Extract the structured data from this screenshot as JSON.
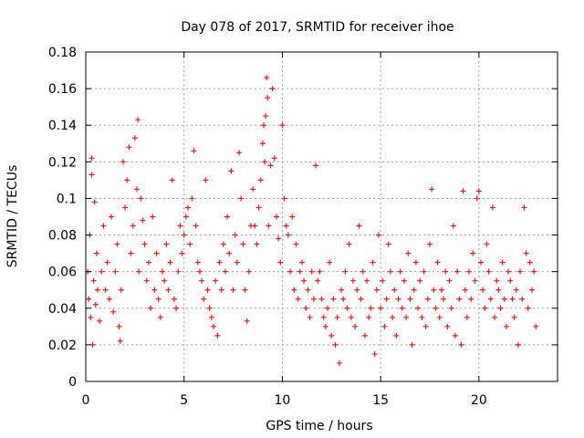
{
  "chart_data": {
    "type": "scatter",
    "title": "Day 078 of 2017, SRMTID for receiver ihoe",
    "xlabel": "GPS time / hours",
    "ylabel": "SRMTID / TECUs",
    "xlim": [
      0,
      24
    ],
    "ylim": [
      0,
      0.18
    ],
    "xticks": [
      0,
      5,
      10,
      15,
      20
    ],
    "xtick_labels": [
      "0",
      "5",
      "10",
      "15",
      "20"
    ],
    "yticks": [
      0,
      0.02,
      0.04,
      0.06,
      0.08,
      0.1,
      0.12,
      0.14,
      0.16,
      0.18
    ],
    "ytick_labels": [
      "0",
      "0.02",
      "0.04",
      "0.06",
      "0.08",
      "0.1",
      "0.12",
      "0.14",
      "0.16",
      "0.18"
    ],
    "grid": true,
    "marker": "+",
    "color": "#e41a1c",
    "series": [
      {
        "name": "SRMTID",
        "points": [
          [
            0.1,
            0.06
          ],
          [
            0.15,
            0.045
          ],
          [
            0.2,
            0.08
          ],
          [
            0.25,
            0.035
          ],
          [
            0.3,
            0.122
          ],
          [
            0.3,
            0.113
          ],
          [
            0.35,
            0.02
          ],
          [
            0.4,
            0.055
          ],
          [
            0.45,
            0.098
          ],
          [
            0.5,
            0.042
          ],
          [
            0.55,
            0.07
          ],
          [
            0.6,
            0.05
          ],
          [
            0.7,
            0.033
          ],
          [
            0.8,
            0.06
          ],
          [
            0.9,
            0.085
          ],
          [
            1.0,
            0.05
          ],
          [
            1.1,
            0.065
          ],
          [
            1.2,
            0.045
          ],
          [
            1.3,
            0.09
          ],
          [
            1.4,
            0.038
          ],
          [
            1.5,
            0.06
          ],
          [
            1.6,
            0.075
          ],
          [
            1.7,
            0.03
          ],
          [
            1.75,
            0.022
          ],
          [
            1.8,
            0.05
          ],
          [
            1.9,
            0.12
          ],
          [
            2.0,
            0.095
          ],
          [
            2.1,
            0.11
          ],
          [
            2.2,
            0.128
          ],
          [
            2.3,
            0.07
          ],
          [
            2.4,
            0.085
          ],
          [
            2.5,
            0.133
          ],
          [
            2.6,
            0.105
          ],
          [
            2.65,
            0.143
          ],
          [
            2.7,
            0.06
          ],
          [
            2.8,
            0.1
          ],
          [
            2.9,
            0.088
          ],
          [
            3.0,
            0.075
          ],
          [
            3.1,
            0.055
          ],
          [
            3.2,
            0.065
          ],
          [
            3.3,
            0.04
          ],
          [
            3.4,
            0.09
          ],
          [
            3.5,
            0.05
          ],
          [
            3.6,
            0.07
          ],
          [
            3.7,
            0.045
          ],
          [
            3.8,
            0.035
          ],
          [
            3.9,
            0.06
          ],
          [
            4.0,
            0.055
          ],
          [
            4.1,
            0.075
          ],
          [
            4.2,
            0.05
          ],
          [
            4.3,
            0.065
          ],
          [
            4.4,
            0.11
          ],
          [
            4.5,
            0.045
          ],
          [
            4.6,
            0.04
          ],
          [
            4.7,
            0.06
          ],
          [
            4.8,
            0.085
          ],
          [
            4.9,
            0.07
          ],
          [
            5.0,
            0.08
          ],
          [
            5.1,
            0.09
          ],
          [
            5.2,
            0.095
          ],
          [
            5.3,
            0.075
          ],
          [
            5.4,
            0.1
          ],
          [
            5.5,
            0.126
          ],
          [
            5.6,
            0.085
          ],
          [
            5.7,
            0.065
          ],
          [
            5.8,
            0.06
          ],
          [
            5.9,
            0.055
          ],
          [
            6.0,
            0.045
          ],
          [
            6.1,
            0.11
          ],
          [
            6.2,
            0.05
          ],
          [
            6.3,
            0.04
          ],
          [
            6.4,
            0.035
          ],
          [
            6.5,
            0.03
          ],
          [
            6.6,
            0.055
          ],
          [
            6.7,
            0.025
          ],
          [
            6.8,
            0.065
          ],
          [
            6.9,
            0.05
          ],
          [
            7.0,
            0.075
          ],
          [
            7.1,
            0.06
          ],
          [
            7.2,
            0.09
          ],
          [
            7.3,
            0.07
          ],
          [
            7.4,
            0.115
          ],
          [
            7.5,
            0.05
          ],
          [
            7.6,
            0.08
          ],
          [
            7.7,
            0.065
          ],
          [
            7.8,
            0.125
          ],
          [
            7.9,
            0.1
          ],
          [
            8.0,
            0.075
          ],
          [
            8.1,
            0.05
          ],
          [
            8.2,
            0.033
          ],
          [
            8.3,
            0.06
          ],
          [
            8.4,
            0.085
          ],
          [
            8.5,
            0.105
          ],
          [
            8.6,
            0.085
          ],
          [
            8.7,
            0.075
          ],
          [
            8.8,
            0.095
          ],
          [
            8.9,
            0.11
          ],
          [
            9.0,
            0.13
          ],
          [
            9.05,
            0.14
          ],
          [
            9.1,
            0.12
          ],
          [
            9.15,
            0.145
          ],
          [
            9.2,
            0.166
          ],
          [
            9.25,
            0.155
          ],
          [
            9.3,
            0.085
          ],
          [
            9.4,
            0.118
          ],
          [
            9.5,
            0.16
          ],
          [
            9.6,
            0.122
          ],
          [
            9.7,
            0.09
          ],
          [
            9.8,
            0.078
          ],
          [
            9.9,
            0.065
          ],
          [
            10.0,
            0.14
          ],
          [
            10.1,
            0.1
          ],
          [
            10.2,
            0.085
          ],
          [
            10.3,
            0.08
          ],
          [
            10.4,
            0.06
          ],
          [
            10.5,
            0.09
          ],
          [
            10.6,
            0.05
          ],
          [
            10.7,
            0.075
          ],
          [
            10.8,
            0.045
          ],
          [
            10.9,
            0.06
          ],
          [
            11.0,
            0.065
          ],
          [
            11.1,
            0.055
          ],
          [
            11.2,
            0.04
          ],
          [
            11.3,
            0.05
          ],
          [
            11.4,
            0.035
          ],
          [
            11.5,
            0.06
          ],
          [
            11.6,
            0.045
          ],
          [
            11.7,
            0.118
          ],
          [
            11.8,
            0.055
          ],
          [
            11.9,
            0.06
          ],
          [
            12.0,
            0.045
          ],
          [
            12.1,
            0.035
          ],
          [
            12.2,
            0.03
          ],
          [
            12.3,
            0.04
          ],
          [
            12.4,
            0.065
          ],
          [
            12.5,
            0.025
          ],
          [
            12.6,
            0.045
          ],
          [
            12.7,
            0.02
          ],
          [
            12.8,
            0.035
          ],
          [
            12.9,
            0.01
          ],
          [
            13.0,
            0.05
          ],
          [
            13.1,
            0.045
          ],
          [
            13.2,
            0.06
          ],
          [
            13.3,
            0.04
          ],
          [
            13.4,
            0.075
          ],
          [
            13.5,
            0.035
          ],
          [
            13.6,
            0.055
          ],
          [
            13.7,
            0.03
          ],
          [
            13.8,
            0.05
          ],
          [
            13.9,
            0.085
          ],
          [
            14.0,
            0.045
          ],
          [
            14.1,
            0.06
          ],
          [
            14.2,
            0.025
          ],
          [
            14.3,
            0.055
          ],
          [
            14.4,
            0.035
          ],
          [
            14.5,
            0.04
          ],
          [
            14.6,
            0.065
          ],
          [
            14.7,
            0.015
          ],
          [
            14.8,
            0.05
          ],
          [
            14.9,
            0.08
          ],
          [
            15.0,
            0.04
          ],
          [
            15.1,
            0.055
          ],
          [
            15.2,
            0.03
          ],
          [
            15.3,
            0.045
          ],
          [
            15.4,
            0.075
          ],
          [
            15.5,
            0.06
          ],
          [
            15.6,
            0.035
          ],
          [
            15.7,
            0.05
          ],
          [
            15.8,
            0.025
          ],
          [
            15.9,
            0.045
          ],
          [
            16.0,
            0.06
          ],
          [
            16.1,
            0.04
          ],
          [
            16.2,
            0.055
          ],
          [
            16.3,
            0.035
          ],
          [
            16.4,
            0.07
          ],
          [
            16.5,
            0.045
          ],
          [
            16.6,
            0.02
          ],
          [
            16.7,
            0.05
          ],
          [
            16.8,
            0.065
          ],
          [
            16.9,
            0.04
          ],
          [
            17.0,
            0.055
          ],
          [
            17.1,
            0.035
          ],
          [
            17.2,
            0.06
          ],
          [
            17.3,
            0.03
          ],
          [
            17.4,
            0.045
          ],
          [
            17.5,
            0.075
          ],
          [
            17.6,
            0.105
          ],
          [
            17.7,
            0.05
          ],
          [
            17.8,
            0.04
          ],
          [
            17.9,
            0.065
          ],
          [
            18.0,
            0.035
          ],
          [
            18.1,
            0.05
          ],
          [
            18.2,
            0.045
          ],
          [
            18.3,
            0.06
          ],
          [
            18.4,
            0.03
          ],
          [
            18.5,
            0.055
          ],
          [
            18.6,
            0.04
          ],
          [
            18.7,
            0.085
          ],
          [
            18.8,
            0.025
          ],
          [
            18.9,
            0.06
          ],
          [
            19.0,
            0.045
          ],
          [
            19.1,
            0.02
          ],
          [
            19.2,
            0.104
          ],
          [
            19.3,
            0.05
          ],
          [
            19.4,
            0.035
          ],
          [
            19.5,
            0.06
          ],
          [
            19.6,
            0.045
          ],
          [
            19.7,
            0.07
          ],
          [
            19.8,
            0.055
          ],
          [
            19.9,
            0.1
          ],
          [
            20.0,
            0.104
          ],
          [
            20.1,
            0.065
          ],
          [
            20.2,
            0.05
          ],
          [
            20.3,
            0.04
          ],
          [
            20.4,
            0.075
          ],
          [
            20.5,
            0.06
          ],
          [
            20.6,
            0.045
          ],
          [
            20.7,
            0.095
          ],
          [
            20.8,
            0.035
          ],
          [
            20.9,
            0.055
          ],
          [
            21.0,
            0.05
          ],
          [
            21.1,
            0.04
          ],
          [
            21.2,
            0.065
          ],
          [
            21.3,
            0.045
          ],
          [
            21.4,
            0.03
          ],
          [
            21.5,
            0.06
          ],
          [
            21.6,
            0.055
          ],
          [
            21.7,
            0.045
          ],
          [
            21.8,
            0.035
          ],
          [
            21.9,
            0.05
          ],
          [
            22.0,
            0.02
          ],
          [
            22.1,
            0.06
          ],
          [
            22.2,
            0.045
          ],
          [
            22.3,
            0.095
          ],
          [
            22.4,
            0.07
          ],
          [
            22.5,
            0.04
          ],
          [
            22.6,
            0.065
          ],
          [
            22.7,
            0.05
          ],
          [
            22.8,
            0.06
          ],
          [
            22.9,
            0.03
          ]
        ]
      }
    ]
  }
}
